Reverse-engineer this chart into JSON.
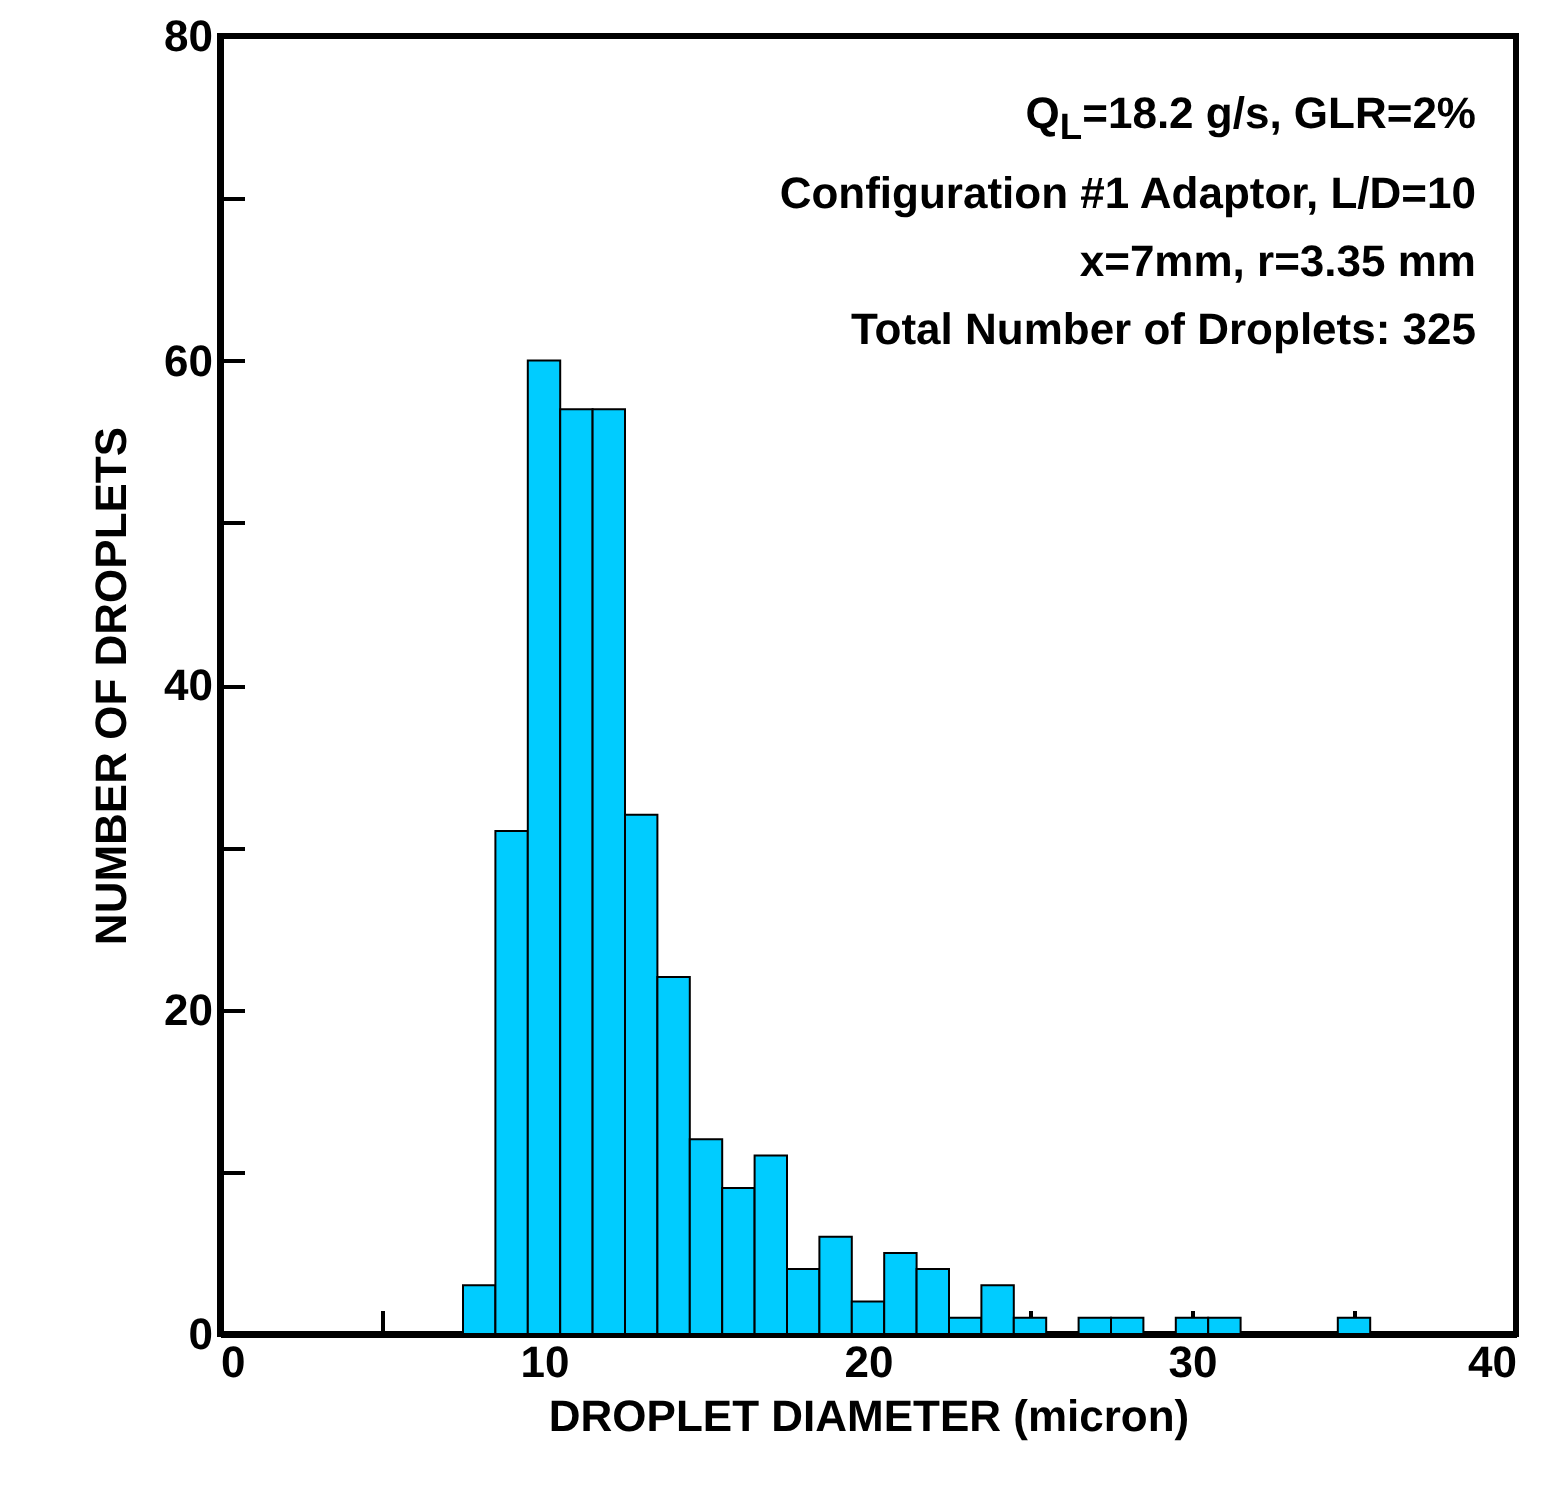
{
  "chart_data": {
    "type": "histogram",
    "xlabel": "DROPLET DIAMETER (micron)",
    "ylabel": "NUMBER OF DROPLETS",
    "bins": [
      7.5,
      8.5,
      9.5,
      10.5,
      11.5,
      12.5,
      13.5,
      14.5,
      15.5,
      16.5,
      17.5,
      18.5,
      19.5,
      20.5,
      21.5,
      22.5,
      23.5,
      24.5,
      25.5,
      26.5,
      27.5,
      28.5,
      29.5,
      30.5,
      31.5,
      32.5,
      33.5,
      34.5,
      35.5
    ],
    "values": [
      3,
      31,
      60,
      57,
      57,
      32,
      22,
      12,
      9,
      11,
      4,
      6,
      2,
      5,
      4,
      1,
      3,
      1,
      0,
      1,
      1,
      0,
      1,
      1,
      0,
      0,
      0,
      1
    ],
    "color": "#00ccff",
    "xlim": [
      0,
      40
    ],
    "ylim": [
      0,
      80
    ],
    "xticks": [
      0,
      {
        "value": 5,
        "label": null
      },
      10,
      {
        "value": 15,
        "label": null
      },
      20,
      {
        "value": 25,
        "label": null
      },
      30,
      {
        "value": 35,
        "label": null
      },
      40
    ],
    "yticks": [
      0,
      {
        "value": 10,
        "label": null
      },
      20,
      {
        "value": 30,
        "label": null
      },
      40,
      {
        "value": 50,
        "label": null
      },
      60,
      {
        "value": 70,
        "label": null
      },
      80
    ],
    "annotations": [
      "Q$_{L}$=18.2 g/s, GLR=2%",
      "Configuration #1 Adaptor, L/D=10",
      "x=7mm, r=3.35 mm",
      "Total Number of Droplets: 325"
    ],
    "grid": false
  }
}
